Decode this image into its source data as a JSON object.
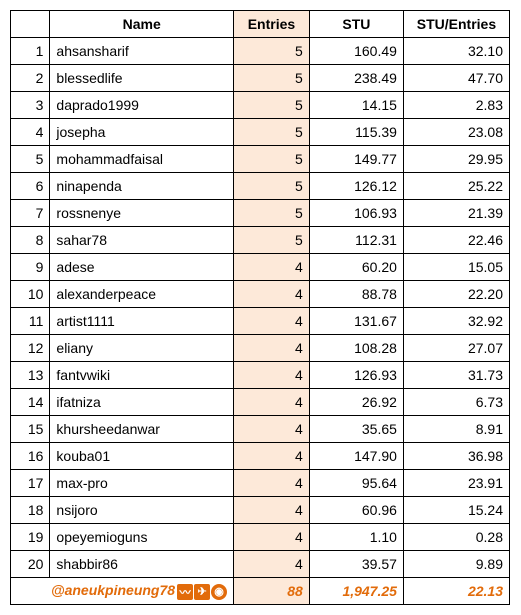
{
  "table": {
    "headers": {
      "name": "Name",
      "entries": "Entries",
      "stu": "STU",
      "ratio": "STU/Entries"
    },
    "header_bg_entries": "#fde9d9",
    "cell_bg_entries": "#fde9d9",
    "border_color": "#000000",
    "rows": [
      {
        "num": "1",
        "name": "ahsansharif",
        "entries": "5",
        "stu": "160.49",
        "ratio": "32.10"
      },
      {
        "num": "2",
        "name": "blessedlife",
        "entries": "5",
        "stu": "238.49",
        "ratio": "47.70"
      },
      {
        "num": "3",
        "name": "daprado1999",
        "entries": "5",
        "stu": "14.15",
        "ratio": "2.83"
      },
      {
        "num": "4",
        "name": "josepha",
        "entries": "5",
        "stu": "115.39",
        "ratio": "23.08"
      },
      {
        "num": "5",
        "name": "mohammadfaisal",
        "entries": "5",
        "stu": "149.77",
        "ratio": "29.95"
      },
      {
        "num": "6",
        "name": "ninapenda",
        "entries": "5",
        "stu": "126.12",
        "ratio": "25.22"
      },
      {
        "num": "7",
        "name": "rossnenye",
        "entries": "5",
        "stu": "106.93",
        "ratio": "21.39"
      },
      {
        "num": "8",
        "name": "sahar78",
        "entries": "5",
        "stu": "112.31",
        "ratio": "22.46"
      },
      {
        "num": "9",
        "name": "adese",
        "entries": "4",
        "stu": "60.20",
        "ratio": "15.05"
      },
      {
        "num": "10",
        "name": "alexanderpeace",
        "entries": "4",
        "stu": "88.78",
        "ratio": "22.20"
      },
      {
        "num": "11",
        "name": "artist1111",
        "entries": "4",
        "stu": "131.67",
        "ratio": "32.92"
      },
      {
        "num": "12",
        "name": "eliany",
        "entries": "4",
        "stu": "108.28",
        "ratio": "27.07"
      },
      {
        "num": "13",
        "name": "fantvwiki",
        "entries": "4",
        "stu": "126.93",
        "ratio": "31.73"
      },
      {
        "num": "14",
        "name": "ifatniza",
        "entries": "4",
        "stu": "26.92",
        "ratio": "6.73"
      },
      {
        "num": "15",
        "name": "khursheedanwar",
        "entries": "4",
        "stu": "35.65",
        "ratio": "8.91"
      },
      {
        "num": "16",
        "name": "kouba01",
        "entries": "4",
        "stu": "147.90",
        "ratio": "36.98"
      },
      {
        "num": "17",
        "name": "max-pro",
        "entries": "4",
        "stu": "95.64",
        "ratio": "23.91"
      },
      {
        "num": "18",
        "name": "nsijoro",
        "entries": "4",
        "stu": "60.96",
        "ratio": "15.24"
      },
      {
        "num": "19",
        "name": "opeyemioguns",
        "entries": "4",
        "stu": "1.10",
        "ratio": "0.28"
      },
      {
        "num": "20",
        "name": "shabbir86",
        "entries": "4",
        "stu": "39.57",
        "ratio": "9.89"
      }
    ],
    "footer": {
      "label": "@aneukpineung78",
      "entries": "88",
      "stu": "1,947.25",
      "ratio": "22.13",
      "text_color": "#e26b0a",
      "icons": {
        "steem": "〰",
        "telegram": "✈",
        "discord": "◉"
      }
    }
  }
}
